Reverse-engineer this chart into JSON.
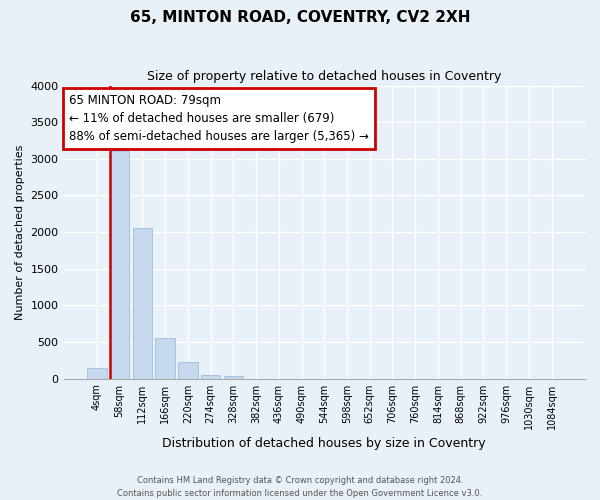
{
  "title": "65, MINTON ROAD, COVENTRY, CV2 2XH",
  "subtitle": "Size of property relative to detached houses in Coventry",
  "xlabel": "Distribution of detached houses by size in Coventry",
  "ylabel": "Number of detached properties",
  "bar_labels": [
    "4sqm",
    "58sqm",
    "112sqm",
    "166sqm",
    "220sqm",
    "274sqm",
    "328sqm",
    "382sqm",
    "436sqm",
    "490sqm",
    "544sqm",
    "598sqm",
    "652sqm",
    "706sqm",
    "760sqm",
    "814sqm",
    "868sqm",
    "922sqm",
    "976sqm",
    "1030sqm",
    "1084sqm"
  ],
  "bar_values": [
    150,
    3100,
    2050,
    560,
    230,
    55,
    30,
    0,
    0,
    0,
    0,
    0,
    0,
    0,
    0,
    0,
    0,
    0,
    0,
    0,
    0
  ],
  "bar_color": "#c5d8ee",
  "bar_edge_color": "#a8c4e0",
  "background_color": "#e8f0f8",
  "grid_color": "#ffffff",
  "ylim": [
    0,
    4000
  ],
  "yticks": [
    0,
    500,
    1000,
    1500,
    2000,
    2500,
    3000,
    3500,
    4000
  ],
  "vline_x_index": 1,
  "vline_color": "#cc0000",
  "annotation_text": "65 MINTON ROAD: 79sqm\n← 11% of detached houses are smaller (679)\n88% of semi-detached houses are larger (5,365) →",
  "annotation_box_color": "#cc0000",
  "footer_line1": "Contains HM Land Registry data © Crown copyright and database right 2024.",
  "footer_line2": "Contains public sector information licensed under the Open Government Licence v3.0."
}
